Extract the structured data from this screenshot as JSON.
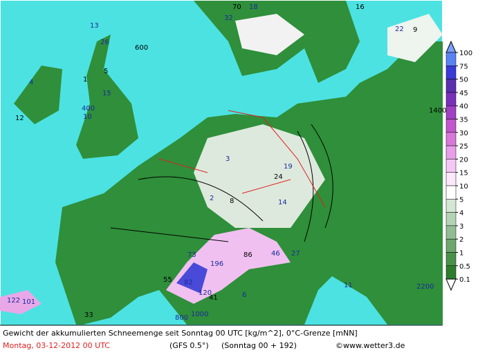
{
  "map": {
    "legend": {
      "levels": [
        100,
        75,
        50,
        45,
        40,
        35,
        30,
        25,
        20,
        15,
        10,
        5,
        4,
        3,
        2,
        1,
        0.5,
        0.1
      ],
      "colors": [
        "#5a82f0",
        "#3a3ad8",
        "#5a2fb0",
        "#7a30b8",
        "#a040c4",
        "#c256cc",
        "#d878d8",
        "#e89ee8",
        "#f4c8f4",
        "#fbe8fb",
        "#ffffff",
        "#d4e6d4",
        "#b4d2b4",
        "#94bc94",
        "#6ea66e",
        "#4a924a",
        "#2c7c2c"
      ],
      "top_color": "#7aa0f8",
      "bottom_color": "#ffffff"
    },
    "labels": [
      "600",
      "13",
      "26",
      "5",
      "15",
      "4",
      "12",
      "10",
      "400",
      "1",
      "3",
      "2",
      "8",
      "14",
      "19",
      "24",
      "73",
      "196",
      "86",
      "46",
      "27",
      "55",
      "82",
      "120",
      "41",
      "122",
      "101",
      "33",
      "6",
      "11",
      "70",
      "32",
      "22",
      "9",
      "800",
      "1000",
      "1400",
      "2200",
      "18",
      "16"
    ]
  },
  "footer": {
    "title": "Gewicht der akkumulierten Schneemenge seit Sonntag 00 UTC [kg/m^2], 0°C-Grenze [mNN]",
    "date": "Montag, 03-12-2012  00 UTC",
    "model": "(GFS 0.5°)",
    "run": "(Sonntag 00 + 192)",
    "source": "©www.wetter3.de"
  }
}
